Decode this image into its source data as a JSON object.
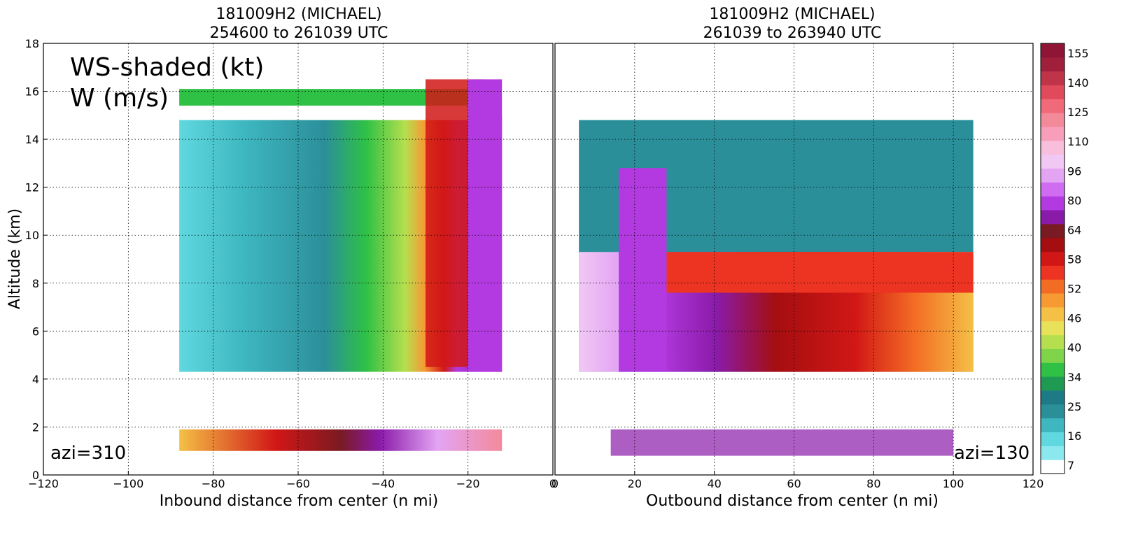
{
  "chart_data": [
    {
      "type": "heatmap",
      "title": "181009H2 (MICHAEL)",
      "subtitle": "254600 to 261039 UTC",
      "xlabel": "Inbound distance from center (n mi)",
      "ylabel": "Altitude (km)",
      "xlim": [
        -120,
        0
      ],
      "ylim": [
        0,
        18
      ],
      "xticks": [
        -120,
        -100,
        -80,
        -60,
        -40,
        -20,
        0
      ],
      "yticks": [
        0,
        2,
        4,
        6,
        8,
        10,
        12,
        14,
        16,
        18
      ],
      "grid": true,
      "annotations": [
        "WS-shaded (kt)",
        "W (m/s)",
        "azi=310"
      ],
      "eyewall_x": -22,
      "data_extent": {
        "x": [
          -88,
          -12
        ],
        "y": [
          4.3,
          16.5
        ]
      },
      "outflow_layer": {
        "x": [
          -88,
          -20
        ],
        "top": 16.1,
        "bottom": 15.4
      },
      "low_level_strip": {
        "x": [
          -88,
          -12
        ],
        "y": [
          1.0,
          1.9
        ]
      }
    },
    {
      "type": "heatmap",
      "title": "181009H2 (MICHAEL)",
      "subtitle": "261039 to 263940 UTC",
      "xlabel": "Outbound distance from center (n mi)",
      "ylabel": "",
      "xlim": [
        0,
        120
      ],
      "ylim": [
        0,
        18
      ],
      "xticks": [
        0,
        20,
        40,
        60,
        80,
        100,
        120
      ],
      "yticks": [
        0,
        2,
        4,
        6,
        8,
        10,
        12,
        14,
        16,
        18
      ],
      "grid": true,
      "annotations": [
        "azi=130"
      ],
      "eyewall_x": 22,
      "data_extent": {
        "x": [
          6,
          105
        ],
        "y": [
          4.3,
          14.8
        ]
      },
      "outflow_layer": {
        "x": [
          28,
          105
        ],
        "top": 9.3,
        "bottom": 7.6
      },
      "low_level_strip": {
        "x": [
          14,
          100
        ],
        "y": [
          0.8,
          1.9
        ]
      }
    }
  ],
  "colorbar": {
    "ticks": [
      "155",
      "140",
      "125",
      "110",
      "96",
      "80",
      "64",
      "58",
      "52",
      "46",
      "40",
      "34",
      "25",
      "16",
      "7"
    ],
    "colors_bottom_to_top": [
      "#ffffff",
      "#8be8ee",
      "#5fd8df",
      "#3eb7c0",
      "#2b8f9a",
      "#1f7a88",
      "#1e9a52",
      "#2fc145",
      "#7fd44a",
      "#b5df4e",
      "#e8e25a",
      "#f4c046",
      "#f79a34",
      "#f36c24",
      "#ed3322",
      "#d11716",
      "#a50e10",
      "#7a1a22",
      "#8a1aa8",
      "#b33ae0",
      "#cf6cf0",
      "#e3a4f4",
      "#f1c8f4",
      "#f9bedb",
      "#f79ebb",
      "#f38a9a",
      "#f16a7a",
      "#e04a5a",
      "#c0344a",
      "#a01f3b",
      "#8e1536"
    ]
  }
}
